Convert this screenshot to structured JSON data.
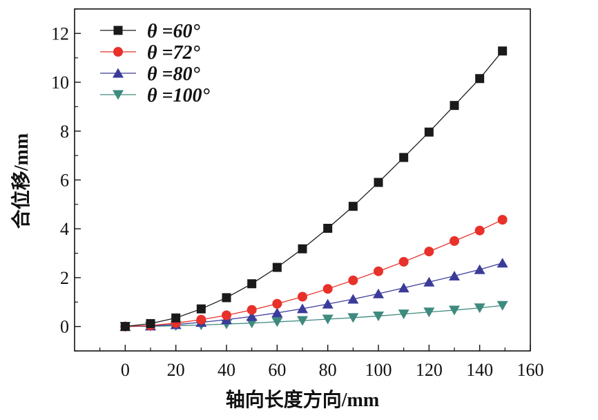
{
  "chart_data": {
    "type": "line",
    "xlabel": "轴向长度方向/mm",
    "ylabel": "合位移/mm",
    "xlim": [
      -20,
      160
    ],
    "ylim": [
      -1,
      13
    ],
    "x_ticks": [
      "0",
      "20",
      "40",
      "60",
      "80",
      "100",
      "120",
      "140",
      "160"
    ],
    "y_ticks": [
      "0",
      "2",
      "4",
      "6",
      "8",
      "10",
      "12"
    ],
    "legend_position": "top-left",
    "grid": false,
    "x": [
      0,
      10,
      20,
      30,
      40,
      50,
      60,
      70,
      80,
      90,
      100,
      110,
      120,
      130,
      140,
      149
    ],
    "series": [
      {
        "name": "θ =60°",
        "marker": "square",
        "color": "#1a1a1a",
        "values": [
          0.0,
          0.12,
          0.35,
          0.72,
          1.18,
          1.75,
          2.42,
          3.18,
          4.02,
          4.92,
          5.9,
          6.92,
          7.96,
          9.05,
          10.15,
          11.28
        ]
      },
      {
        "name": "θ =72°",
        "marker": "circle",
        "color": "#e8312a",
        "values": [
          0.0,
          0.04,
          0.14,
          0.28,
          0.46,
          0.68,
          0.93,
          1.22,
          1.54,
          1.89,
          2.26,
          2.65,
          3.07,
          3.5,
          3.93,
          4.37
        ]
      },
      {
        "name": "θ =80°",
        "marker": "triangle-up",
        "color": "#3b3b9a",
        "values": [
          0.0,
          0.02,
          0.08,
          0.17,
          0.28,
          0.41,
          0.56,
          0.73,
          0.92,
          1.12,
          1.34,
          1.58,
          1.82,
          2.07,
          2.33,
          2.6
        ]
      },
      {
        "name": "θ =100°",
        "marker": "triangle-down",
        "color": "#3e8a7f",
        "values": [
          0.0,
          0.01,
          0.03,
          0.06,
          0.1,
          0.14,
          0.19,
          0.24,
          0.3,
          0.36,
          0.43,
          0.51,
          0.59,
          0.67,
          0.76,
          0.86
        ]
      }
    ]
  }
}
